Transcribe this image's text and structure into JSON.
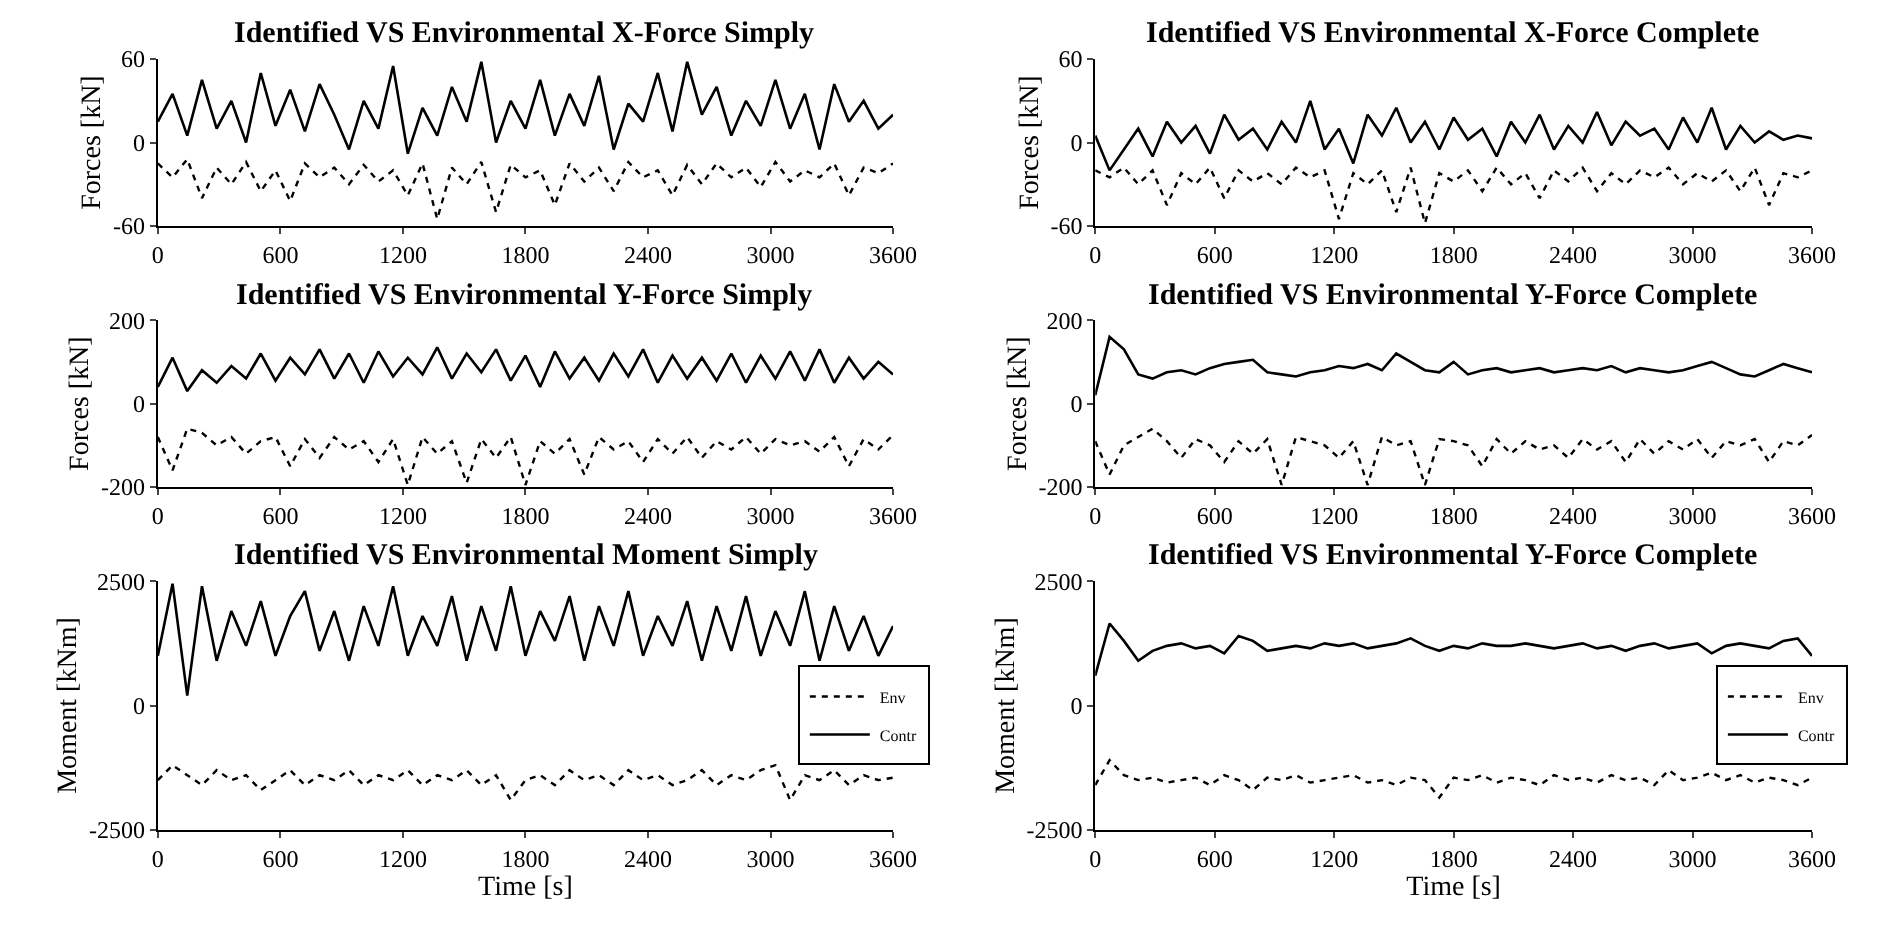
{
  "chart_data": [
    {
      "type": "line",
      "title": "Identified VS Environmental X-Force Simply",
      "ylabel": "Forces [kN]",
      "xlim": [
        0,
        3600
      ],
      "xticks": [
        0,
        600,
        1200,
        1800,
        2400,
        3000,
        3600
      ],
      "ylim": [
        -60,
        60
      ],
      "yticks": [
        -60,
        0,
        60
      ],
      "grid": false,
      "legend": false,
      "marker": "none",
      "x": [
        0,
        72,
        144,
        216,
        288,
        360,
        432,
        504,
        576,
        648,
        720,
        792,
        864,
        936,
        1008,
        1080,
        1152,
        1224,
        1296,
        1368,
        1440,
        1512,
        1584,
        1656,
        1728,
        1800,
        1872,
        1944,
        2016,
        2088,
        2160,
        2232,
        2304,
        2376,
        2448,
        2520,
        2592,
        2664,
        2736,
        2808,
        2880,
        2952,
        3024,
        3096,
        3168,
        3240,
        3312,
        3384,
        3456,
        3528,
        3600
      ],
      "series": [
        {
          "color": "#000000",
          "line_style": "dotted",
          "values": [
            -15,
            -25,
            -12,
            -40,
            -18,
            -30,
            -14,
            -35,
            -20,
            -42,
            -15,
            -25,
            -18,
            -30,
            -16,
            -28,
            -20,
            -38,
            -15,
            -55,
            -18,
            -30,
            -14,
            -50,
            -16,
            -25,
            -20,
            -45,
            -15,
            -28,
            -18,
            -35,
            -14,
            -25,
            -20,
            -38,
            -16,
            -30,
            -15,
            -25,
            -18,
            -32,
            -14,
            -28,
            -20,
            -25,
            -15,
            -38,
            -18,
            -22,
            -15
          ]
        },
        {
          "color": "#000000",
          "line_style": "solid",
          "values": [
            15,
            35,
            5,
            45,
            10,
            30,
            0,
            50,
            12,
            38,
            8,
            42,
            20,
            -5,
            30,
            10,
            55,
            -8,
            25,
            5,
            40,
            15,
            58,
            0,
            30,
            10,
            45,
            5,
            35,
            12,
            48,
            -5,
            28,
            15,
            50,
            8,
            58,
            20,
            40,
            5,
            30,
            12,
            45,
            10,
            35,
            -5,
            42,
            15,
            30,
            10,
            20
          ]
        }
      ]
    },
    {
      "type": "line",
      "title": "Identified VS Environmental X-Force Complete",
      "ylabel": "Forces [kN]",
      "xlim": [
        0,
        3600
      ],
      "xticks": [
        0,
        600,
        1200,
        1800,
        2400,
        3000,
        3600
      ],
      "ylim": [
        -60,
        60
      ],
      "yticks": [
        -60,
        0,
        60
      ],
      "grid": false,
      "legend": false,
      "marker": "none",
      "x": [
        0,
        72,
        144,
        216,
        288,
        360,
        432,
        504,
        576,
        648,
        720,
        792,
        864,
        936,
        1008,
        1080,
        1152,
        1224,
        1296,
        1368,
        1440,
        1512,
        1584,
        1656,
        1728,
        1800,
        1872,
        1944,
        2016,
        2088,
        2160,
        2232,
        2304,
        2376,
        2448,
        2520,
        2592,
        2664,
        2736,
        2808,
        2880,
        2952,
        3024,
        3096,
        3168,
        3240,
        3312,
        3384,
        3456,
        3528,
        3600
      ],
      "series": [
        {
          "color": "#000000",
          "line_style": "dotted",
          "values": [
            -20,
            -25,
            -18,
            -30,
            -20,
            -45,
            -22,
            -30,
            -18,
            -40,
            -20,
            -28,
            -22,
            -30,
            -18,
            -25,
            -20,
            -55,
            -22,
            -30,
            -20,
            -50,
            -18,
            -58,
            -22,
            -28,
            -20,
            -35,
            -18,
            -30,
            -22,
            -40,
            -20,
            -28,
            -18,
            -35,
            -22,
            -30,
            -20,
            -25,
            -18,
            -30,
            -22,
            -28,
            -20,
            -35,
            -18,
            -45,
            -22,
            -25,
            -20
          ]
        },
        {
          "color": "#000000",
          "line_style": "solid",
          "values": [
            5,
            -20,
            -5,
            10,
            -10,
            15,
            0,
            12,
            -8,
            20,
            2,
            10,
            -5,
            15,
            0,
            30,
            -5,
            10,
            -15,
            20,
            5,
            25,
            0,
            15,
            -5,
            18,
            2,
            10,
            -10,
            15,
            0,
            20,
            -5,
            12,
            0,
            22,
            -2,
            15,
            5,
            10,
            -5,
            18,
            0,
            25,
            -5,
            12,
            0,
            8,
            2,
            5,
            3
          ]
        }
      ]
    },
    {
      "type": "line",
      "title": "Identified VS Environmental Y-Force Simply",
      "ylabel": "Forces [kN]",
      "xlim": [
        0,
        3600
      ],
      "xticks": [
        0,
        600,
        1200,
        1800,
        2400,
        3000,
        3600
      ],
      "ylim": [
        -200,
        200
      ],
      "yticks": [
        -200,
        0,
        200
      ],
      "grid": false,
      "legend": false,
      "marker": "none",
      "x": [
        0,
        72,
        144,
        216,
        288,
        360,
        432,
        504,
        576,
        648,
        720,
        792,
        864,
        936,
        1008,
        1080,
        1152,
        1224,
        1296,
        1368,
        1440,
        1512,
        1584,
        1656,
        1728,
        1800,
        1872,
        1944,
        2016,
        2088,
        2160,
        2232,
        2304,
        2376,
        2448,
        2520,
        2592,
        2664,
        2736,
        2808,
        2880,
        2952,
        3024,
        3096,
        3168,
        3240,
        3312,
        3384,
        3456,
        3528,
        3600
      ],
      "series": [
        {
          "color": "#000000",
          "line_style": "dotted",
          "values": [
            -80,
            -160,
            -60,
            -70,
            -100,
            -80,
            -120,
            -90,
            -80,
            -150,
            -85,
            -130,
            -80,
            -110,
            -90,
            -140,
            -85,
            -195,
            -80,
            -120,
            -90,
            -190,
            -85,
            -130,
            -80,
            -195,
            -90,
            -120,
            -85,
            -170,
            -80,
            -110,
            -90,
            -140,
            -85,
            -120,
            -80,
            -130,
            -90,
            -110,
            -80,
            -120,
            -85,
            -100,
            -90,
            -115,
            -80,
            -150,
            -85,
            -110,
            -75
          ]
        },
        {
          "color": "#000000",
          "line_style": "solid",
          "values": [
            40,
            110,
            30,
            80,
            50,
            90,
            60,
            120,
            55,
            110,
            70,
            130,
            60,
            120,
            50,
            125,
            65,
            110,
            70,
            135,
            60,
            120,
            75,
            130,
            55,
            115,
            40,
            125,
            60,
            110,
            55,
            120,
            65,
            130,
            50,
            115,
            60,
            110,
            55,
            120,
            50,
            115,
            60,
            125,
            55,
            130,
            50,
            110,
            60,
            100,
            70
          ]
        }
      ]
    },
    {
      "type": "line",
      "title": "Identified VS Environmental Y-Force Complete",
      "ylabel": "Forces [kN]",
      "xlim": [
        0,
        3600
      ],
      "xticks": [
        0,
        600,
        1200,
        1800,
        2400,
        3000,
        3600
      ],
      "ylim": [
        -200,
        200
      ],
      "yticks": [
        -200,
        0,
        200
      ],
      "grid": false,
      "legend": false,
      "marker": "none",
      "x": [
        0,
        72,
        144,
        216,
        288,
        360,
        432,
        504,
        576,
        648,
        720,
        792,
        864,
        936,
        1008,
        1080,
        1152,
        1224,
        1296,
        1368,
        1440,
        1512,
        1584,
        1656,
        1728,
        1800,
        1872,
        1944,
        2016,
        2088,
        2160,
        2232,
        2304,
        2376,
        2448,
        2520,
        2592,
        2664,
        2736,
        2808,
        2880,
        2952,
        3024,
        3096,
        3168,
        3240,
        3312,
        3384,
        3456,
        3528,
        3600
      ],
      "series": [
        {
          "color": "#000000",
          "line_style": "dotted",
          "values": [
            -90,
            -170,
            -100,
            -80,
            -60,
            -90,
            -130,
            -85,
            -100,
            -140,
            -90,
            -120,
            -85,
            -195,
            -80,
            -90,
            -100,
            -130,
            -90,
            -195,
            -80,
            -100,
            -90,
            -195,
            -85,
            -90,
            -100,
            -150,
            -85,
            -120,
            -90,
            -110,
            -100,
            -130,
            -85,
            -110,
            -90,
            -140,
            -85,
            -120,
            -90,
            -110,
            -85,
            -130,
            -90,
            -100,
            -85,
            -140,
            -90,
            -100,
            -75
          ]
        },
        {
          "color": "#000000",
          "line_style": "solid",
          "values": [
            20,
            160,
            130,
            70,
            60,
            75,
            80,
            70,
            85,
            95,
            100,
            105,
            75,
            70,
            65,
            75,
            80,
            90,
            85,
            95,
            80,
            120,
            100,
            80,
            75,
            100,
            70,
            80,
            85,
            75,
            80,
            85,
            75,
            80,
            85,
            80,
            90,
            75,
            85,
            80,
            75,
            80,
            90,
            100,
            85,
            70,
            65,
            80,
            95,
            85,
            75
          ]
        }
      ]
    },
    {
      "type": "line",
      "title": "Identified VS Environmental Moment Simply",
      "xlabel": "Time [s]",
      "ylabel": "Moment [kNm]",
      "xlim": [
        0,
        3600
      ],
      "xticks": [
        0,
        600,
        1200,
        1800,
        2400,
        3000,
        3600
      ],
      "ylim": [
        -2500,
        2500
      ],
      "yticks": [
        -2500,
        0,
        2500
      ],
      "grid": false,
      "legend": "right",
      "marker": "none",
      "x": [
        0,
        72,
        144,
        216,
        288,
        360,
        432,
        504,
        576,
        648,
        720,
        792,
        864,
        936,
        1008,
        1080,
        1152,
        1224,
        1296,
        1368,
        1440,
        1512,
        1584,
        1656,
        1728,
        1800,
        1872,
        1944,
        2016,
        2088,
        2160,
        2232,
        2304,
        2376,
        2448,
        2520,
        2592,
        2664,
        2736,
        2808,
        2880,
        2952,
        3024,
        3096,
        3168,
        3240,
        3312,
        3384,
        3456,
        3528,
        3600
      ],
      "series": [
        {
          "name": "Env",
          "color": "#000000",
          "line_style": "dotted",
          "values": [
            -1500,
            -1200,
            -1400,
            -1600,
            -1300,
            -1500,
            -1400,
            -1700,
            -1500,
            -1300,
            -1600,
            -1400,
            -1500,
            -1300,
            -1600,
            -1400,
            -1500,
            -1300,
            -1600,
            -1400,
            -1500,
            -1300,
            -1600,
            -1400,
            -1900,
            -1500,
            -1400,
            -1600,
            -1300,
            -1500,
            -1400,
            -1600,
            -1300,
            -1500,
            -1400,
            -1600,
            -1500,
            -1300,
            -1600,
            -1400,
            -1500,
            -1300,
            -1200,
            -1900,
            -1400,
            -1500,
            -1300,
            -1600,
            -1400,
            -1500,
            -1450
          ]
        },
        {
          "name": "Contr",
          "color": "#000000",
          "line_style": "solid",
          "values": [
            1000,
            2450,
            200,
            2400,
            900,
            1900,
            1200,
            2100,
            1000,
            1800,
            2300,
            1100,
            1900,
            900,
            2000,
            1200,
            2400,
            1000,
            1800,
            1200,
            2200,
            900,
            2000,
            1100,
            2400,
            1000,
            1900,
            1300,
            2200,
            900,
            2000,
            1200,
            2300,
            1000,
            1800,
            1200,
            2100,
            900,
            2000,
            1100,
            2200,
            1000,
            1900,
            1200,
            2300,
            900,
            2000,
            1100,
            1800,
            1000,
            1600
          ]
        }
      ]
    },
    {
      "type": "line",
      "title": "Identified VS Environmental Y-Force Complete",
      "xlabel": "Time [s]",
      "ylabel": "Moment [kNm]",
      "xlim": [
        0,
        3600
      ],
      "xticks": [
        0,
        600,
        1200,
        1800,
        2400,
        3000,
        3600
      ],
      "ylim": [
        -2500,
        2500
      ],
      "yticks": [
        -2500,
        0,
        2500
      ],
      "grid": false,
      "legend": "right",
      "marker": "none",
      "x": [
        0,
        72,
        144,
        216,
        288,
        360,
        432,
        504,
        576,
        648,
        720,
        792,
        864,
        936,
        1008,
        1080,
        1152,
        1224,
        1296,
        1368,
        1440,
        1512,
        1584,
        1656,
        1728,
        1800,
        1872,
        1944,
        2016,
        2088,
        2160,
        2232,
        2304,
        2376,
        2448,
        2520,
        2592,
        2664,
        2736,
        2808,
        2880,
        2952,
        3024,
        3096,
        3168,
        3240,
        3312,
        3384,
        3456,
        3528,
        3600
      ],
      "series": [
        {
          "name": "Env",
          "color": "#000000",
          "line_style": "dotted",
          "values": [
            -1600,
            -1100,
            -1400,
            -1500,
            -1450,
            -1550,
            -1500,
            -1450,
            -1600,
            -1400,
            -1500,
            -1700,
            -1450,
            -1500,
            -1400,
            -1550,
            -1500,
            -1450,
            -1400,
            -1550,
            -1500,
            -1600,
            -1450,
            -1500,
            -1850,
            -1450,
            -1500,
            -1400,
            -1550,
            -1450,
            -1500,
            -1600,
            -1400,
            -1500,
            -1450,
            -1550,
            -1400,
            -1500,
            -1450,
            -1600,
            -1300,
            -1500,
            -1450,
            -1350,
            -1500,
            -1400,
            -1550,
            -1450,
            -1500,
            -1600,
            -1450
          ]
        },
        {
          "name": "Contr",
          "color": "#000000",
          "line_style": "solid",
          "values": [
            600,
            1650,
            1300,
            900,
            1100,
            1200,
            1250,
            1150,
            1200,
            1050,
            1400,
            1300,
            1100,
            1150,
            1200,
            1150,
            1250,
            1200,
            1250,
            1150,
            1200,
            1250,
            1350,
            1200,
            1100,
            1200,
            1150,
            1250,
            1200,
            1200,
            1250,
            1200,
            1150,
            1200,
            1250,
            1150,
            1200,
            1100,
            1200,
            1250,
            1150,
            1200,
            1250,
            1050,
            1200,
            1250,
            1200,
            1150,
            1300,
            1350,
            1000
          ]
        }
      ]
    }
  ]
}
